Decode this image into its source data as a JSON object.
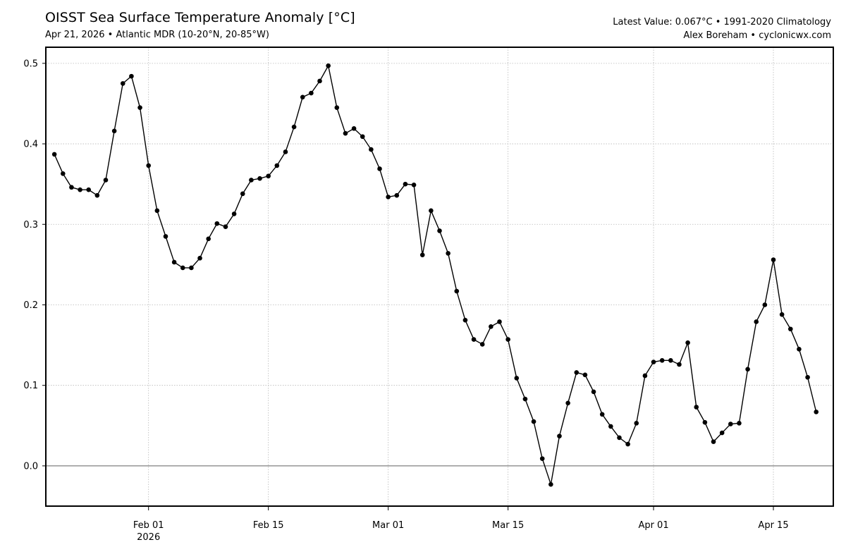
{
  "header": {
    "title": "OISST Sea Surface Temperature Anomaly [°C]",
    "subtitle": "Apr 21, 2026 • Atlantic MDR (10-20°N, 20-85°W)",
    "info_line1": "Latest Value: 0.067°C • 1991-2020 Climatology",
    "info_line2": "Alex Boreham • cyclonicwx.com"
  },
  "chart_data": {
    "type": "line",
    "title": "OISST Sea Surface Temperature Anomaly [°C]",
    "subtitle": "Apr 21, 2026 • Atlantic MDR (10-20°N, 20-85°W)",
    "xlabel": "",
    "ylabel": "",
    "x_start": "2026-01-21",
    "x_end": "2026-04-21",
    "xlim": [
      "2026-01-20",
      "2026-04-22"
    ],
    "ylim": [
      -0.05,
      0.52
    ],
    "grid": true,
    "zero_line": true,
    "line_color": "#000000",
    "zero_line_color": "#808080",
    "x_ticks": [
      {
        "date": "2026-02-01",
        "label": "Feb 01",
        "sublabel": "2026"
      },
      {
        "date": "2026-02-15",
        "label": "Feb 15",
        "sublabel": ""
      },
      {
        "date": "2026-03-01",
        "label": "Mar 01",
        "sublabel": ""
      },
      {
        "date": "2026-03-15",
        "label": "Mar 15",
        "sublabel": ""
      },
      {
        "date": "2026-04-01",
        "label": "Apr 01",
        "sublabel": ""
      },
      {
        "date": "2026-04-15",
        "label": "Apr 15",
        "sublabel": ""
      }
    ],
    "y_ticks": [
      {
        "value": 0.0,
        "label": "0.0"
      },
      {
        "value": 0.1,
        "label": "0.1"
      },
      {
        "value": 0.2,
        "label": "0.2"
      },
      {
        "value": 0.3,
        "label": "0.3"
      },
      {
        "value": 0.4,
        "label": "0.4"
      },
      {
        "value": 0.5,
        "label": "0.5"
      }
    ],
    "series": [
      {
        "values": [
          0.387,
          0.363,
          0.346,
          0.343,
          0.343,
          0.336,
          0.355,
          0.416,
          0.475,
          0.484,
          0.445,
          0.373,
          0.317,
          0.285,
          0.253,
          0.246,
          0.246,
          0.258,
          0.282,
          0.301,
          0.297,
          0.313,
          0.338,
          0.355,
          0.357,
          0.36,
          0.373,
          0.39,
          0.421,
          0.458,
          0.463,
          0.478,
          0.497,
          0.445,
          0.413,
          0.419,
          0.409,
          0.393,
          0.369,
          0.334,
          0.336,
          0.35,
          0.349,
          0.262,
          0.317,
          0.292,
          0.264,
          0.217,
          0.181,
          0.157,
          0.151,
          0.173,
          0.179,
          0.157,
          0.109,
          0.083,
          0.055,
          0.009,
          -0.023,
          0.037,
          0.078,
          0.116,
          0.113,
          0.092,
          0.064,
          0.049,
          0.035,
          0.027,
          0.053,
          0.112,
          0.129,
          0.131,
          0.131,
          0.126,
          0.153,
          0.073,
          0.054,
          0.03,
          0.041,
          0.052,
          0.053,
          0.12,
          0.179,
          0.2,
          0.256,
          0.188,
          0.17,
          0.145,
          0.11,
          0.067
        ]
      }
    ]
  }
}
